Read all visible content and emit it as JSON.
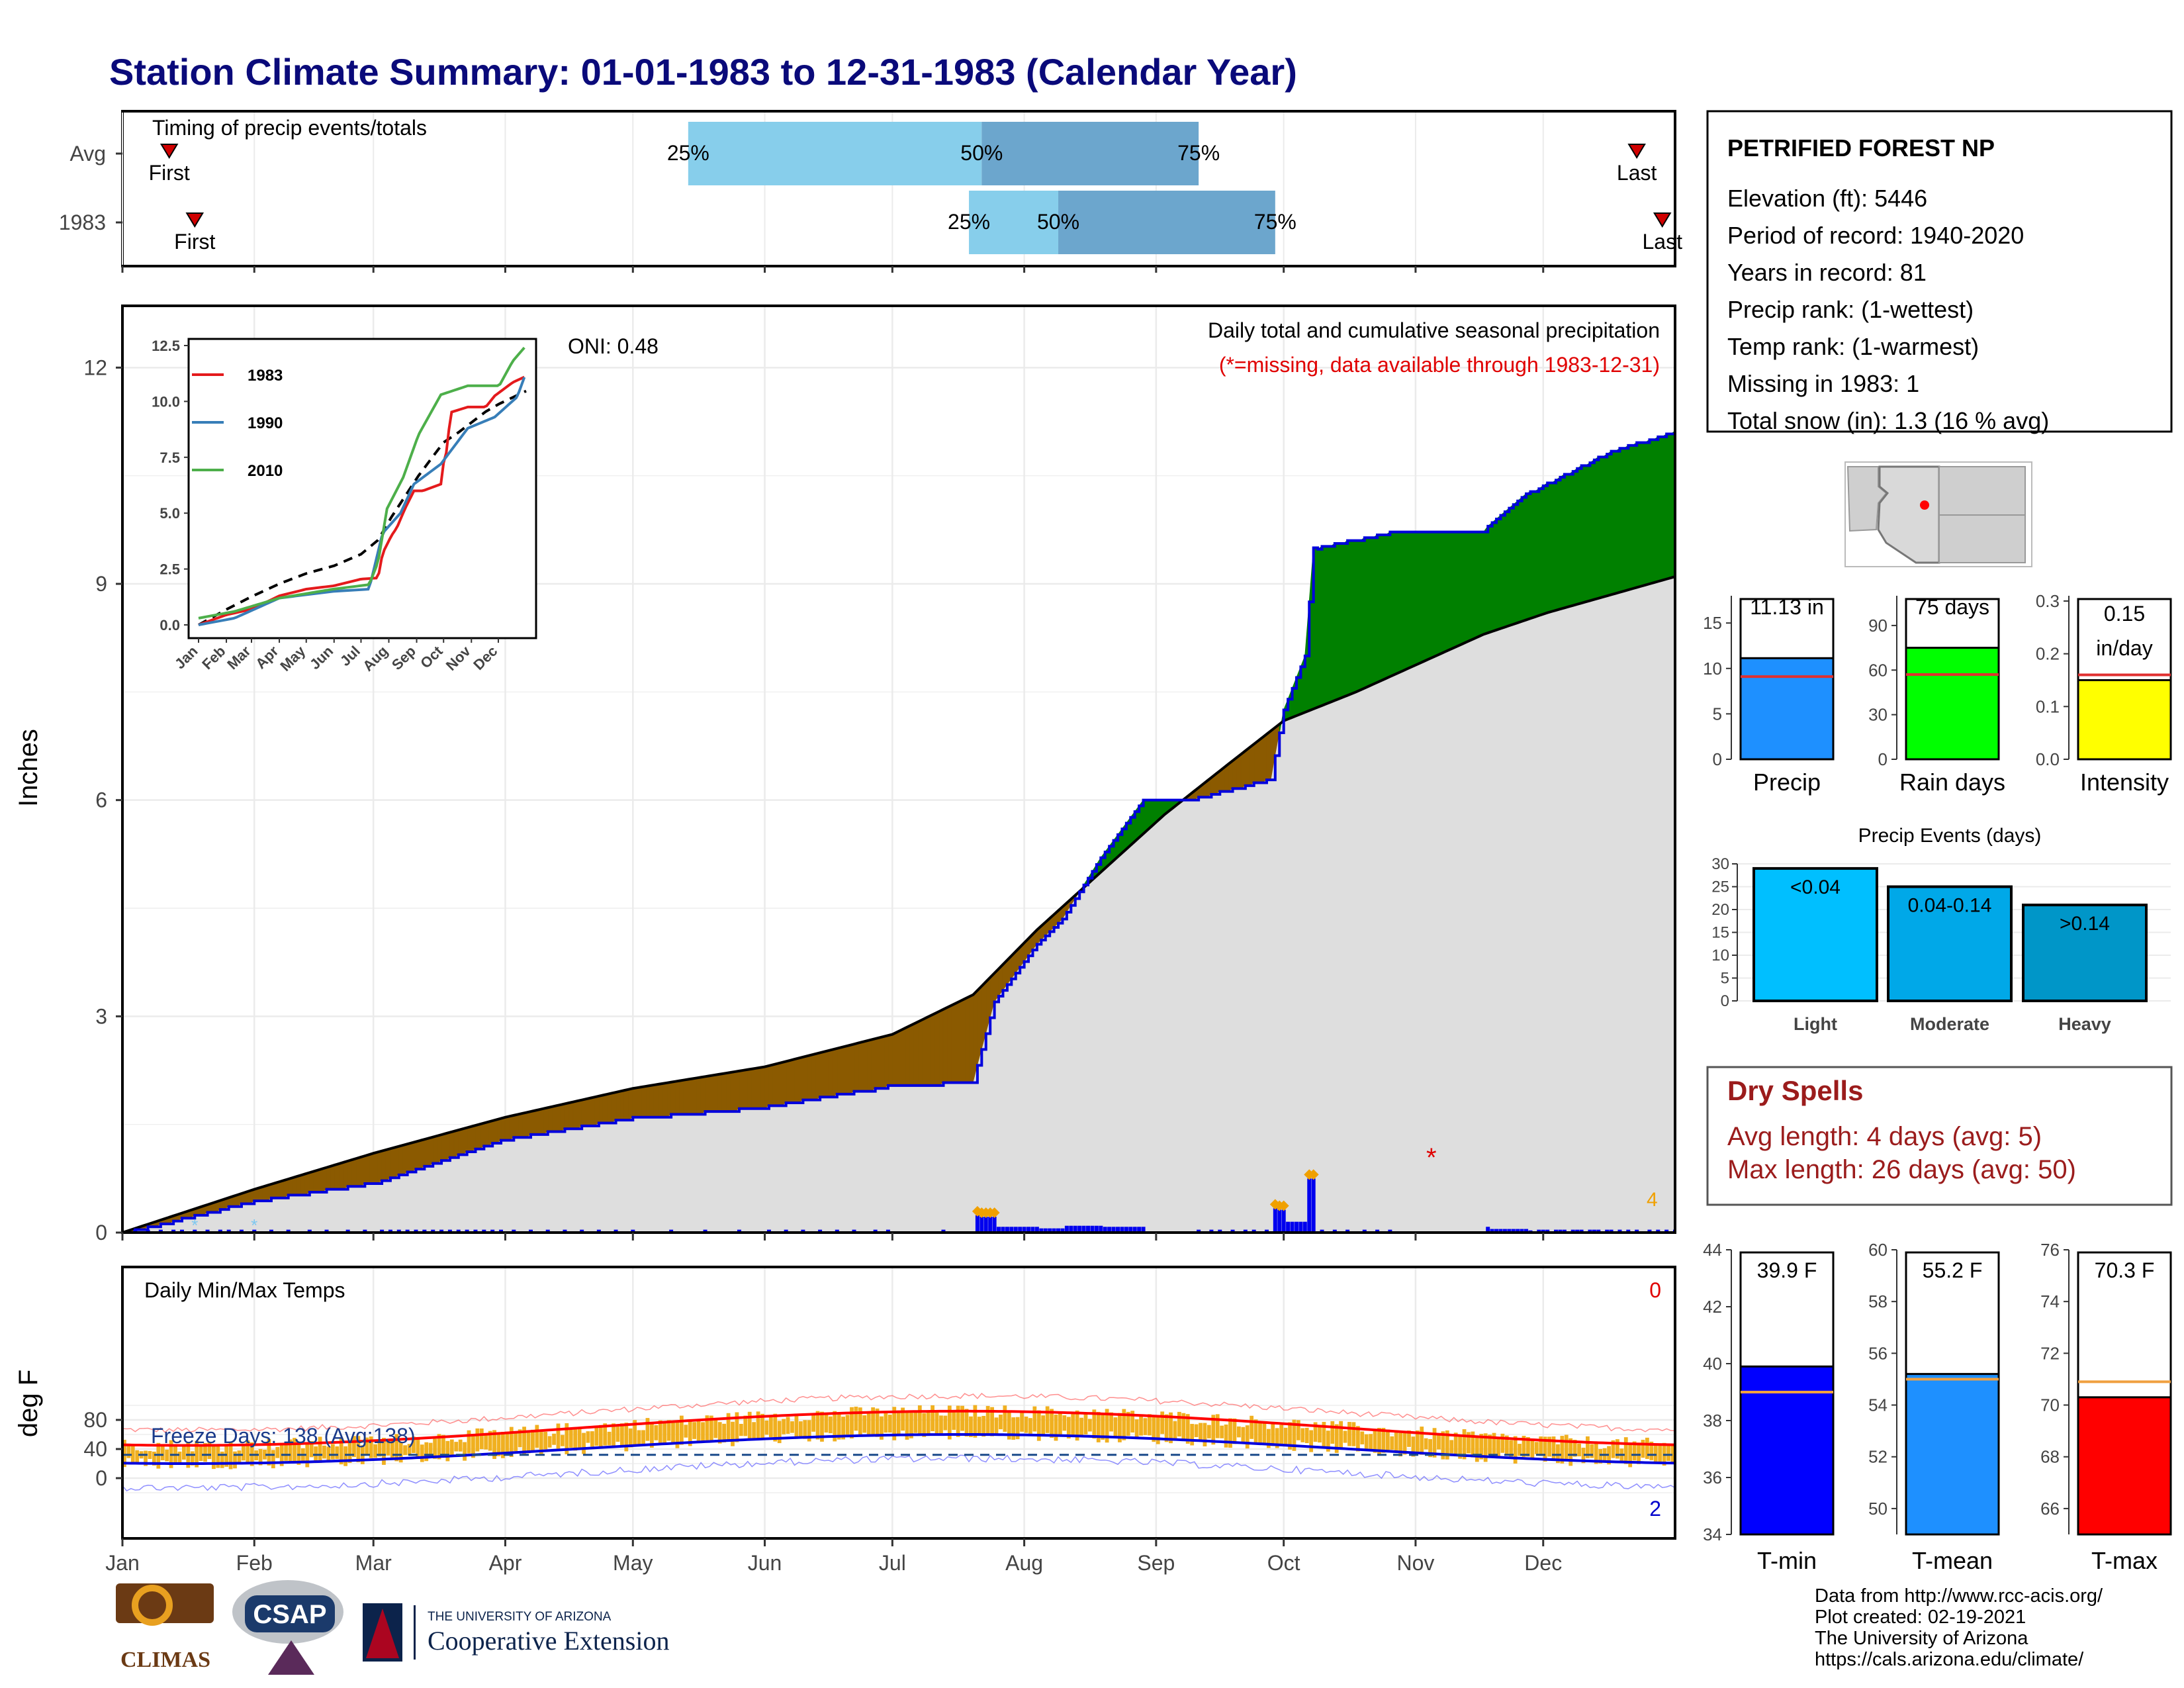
{
  "title": "Station Climate Summary: 01-01-1983 to 12-31-1983 (Calendar Year)",
  "timing_panel": {
    "label": "Timing of precip events/totals",
    "rows": [
      {
        "name": "Avg",
        "first_label": "First",
        "last_label": "Last",
        "first_day": 11,
        "last_day": 356,
        "p25": 133,
        "p50": 202,
        "p75": 253
      },
      {
        "name": "1983",
        "first_label": "First",
        "last_label": "Last",
        "first_day": 17,
        "last_day": 362,
        "p25": 199,
        "p50": 220,
        "p75": 271
      }
    ],
    "pct_labels": [
      "25%",
      "50%",
      "75%"
    ]
  },
  "precip_panel": {
    "ylabel": "Inches",
    "yticks": [
      "0",
      "3",
      "6",
      "9",
      "12"
    ],
    "caption": "Daily total and cumulative seasonal precipitation",
    "missing_note": "(*=missing, data available through 1983-12-31)",
    "oni": "ONI: 0.48",
    "corner_count": "4"
  },
  "inset": {
    "yticks": [
      "0.0",
      "2.5",
      "5.0",
      "7.5",
      "10.0",
      "12.5"
    ],
    "xticks": [
      "Jan",
      "Feb",
      "Mar",
      "Apr",
      "May",
      "Jun",
      "Jul",
      "Aug",
      "Sep",
      "Oct",
      "Nov",
      "Dec"
    ],
    "legend": [
      {
        "name": "1983",
        "color": "#e41a1c"
      },
      {
        "name": "1990",
        "color": "#377eb8"
      },
      {
        "name": "2010",
        "color": "#4daf4a"
      }
    ]
  },
  "temp_panel": {
    "label": "Daily Min/Max Temps",
    "ylabel": "deg F",
    "yticks": [
      "0",
      "40",
      "80"
    ],
    "freeze": "Freeze Days: 138 (Avg:138)",
    "top_count": "0",
    "bottom_count": "2"
  },
  "months": [
    "Jan",
    "Feb",
    "Mar",
    "Apr",
    "May",
    "Jun",
    "Jul",
    "Aug",
    "Sep",
    "Oct",
    "Nov",
    "Dec"
  ],
  "station": {
    "name": "PETRIFIED FOREST NP",
    "lines": [
      "Elevation (ft): 5446",
      "Period of record: 1940-2020",
      "Years in record: 81",
      "Precip rank:  (1-wettest)",
      "Temp rank:  (1-warmest)",
      "Missing in 1983: 1",
      "Total snow (in): 1.3 (16 % avg)"
    ]
  },
  "summary_bars": [
    {
      "label": "Precip",
      "value_text": "11.13 in",
      "value": 11.13,
      "avg": 9.1,
      "max": 18,
      "ticks": [
        "0",
        "5",
        "10",
        "15"
      ],
      "color": "#1e90ff"
    },
    {
      "label": "Rain days",
      "value_text": "75 days",
      "value": 75,
      "avg": 57,
      "max": 110,
      "ticks": [
        "0",
        "30",
        "60",
        "90"
      ],
      "color": "#00ff00"
    },
    {
      "label": "Intensity",
      "value_text": "0.15 in/day",
      "value": 0.15,
      "avg": 0.16,
      "max": 0.31,
      "ticks": [
        "0.0",
        "0.1",
        "0.2",
        "0.3"
      ],
      "color": "#ffff00"
    }
  ],
  "events": {
    "title": "Precip Events (days)",
    "ticks": [
      "0",
      "5",
      "10",
      "15",
      "20",
      "25",
      "30"
    ],
    "bars": [
      {
        "label": "Light",
        "range": "<0.04",
        "value": 29,
        "color": "#00bfff"
      },
      {
        "label": "Moderate",
        "range": "0.04-0.14",
        "value": 25,
        "color": "#00a8e8"
      },
      {
        "label": "Heavy",
        "range": ">0.14",
        "value": 21,
        "color": "#0096c8"
      }
    ]
  },
  "dry_spells": {
    "title": "Dry Spells",
    "avg": "Avg length: 4 days (avg: 5)",
    "max": "Max length: 26 days (avg: 50)"
  },
  "temp_bars": [
    {
      "label": "T-min",
      "value_text": "39.9 F",
      "value": 39.9,
      "avg": 39.0,
      "min": 34,
      "max": 44,
      "ticks": [
        "34",
        "36",
        "38",
        "40",
        "42",
        "44"
      ],
      "color": "#0000ff"
    },
    {
      "label": "T-mean",
      "value_text": "55.2 F",
      "value": 55.2,
      "avg": 55.0,
      "min": 49,
      "max": 60,
      "ticks": [
        "50",
        "52",
        "54",
        "56",
        "58",
        "60"
      ],
      "color": "#1e90ff"
    },
    {
      "label": "T-max",
      "value_text": "70.3 F",
      "value": 70.3,
      "avg": 70.9,
      "min": 65,
      "max": 76,
      "ticks": [
        "66",
        "68",
        "70",
        "72",
        "74",
        "76"
      ],
      "color": "#ff0000"
    }
  ],
  "footer": [
    "Data from http://www.rcc-acis.org/",
    "Plot created: 02-19-2021",
    "The University of Arizona",
    "https://cals.arizona.edu/climate/"
  ],
  "logos": {
    "climas": "CLIMAS",
    "csap": "CSAP",
    "ua_small": "THE UNIVERSITY OF ARIZONA",
    "ua_big": "Cooperative Extension"
  },
  "chart_data": {
    "type": "area",
    "title": "Station Climate Summary: 01-01-1983 to 12-31-1983 (Calendar Year)",
    "ylabel": "Inches",
    "ylim": [
      0,
      12
    ],
    "x": [
      "Jan",
      "Feb",
      "Mar",
      "Apr",
      "May",
      "Jun",
      "Jul",
      "Aug",
      "Sep",
      "Oct",
      "Nov",
      "Dec"
    ],
    "cumulative_1983": [
      [
        0,
        0
      ],
      [
        31,
        0.45
      ],
      [
        59,
        0.7
      ],
      [
        90,
        1.3
      ],
      [
        120,
        1.6
      ],
      [
        151,
        1.75
      ],
      [
        181,
        2.05
      ],
      [
        200,
        2.1
      ],
      [
        205,
        3.2
      ],
      [
        215,
        4.0
      ],
      [
        221,
        4.35
      ],
      [
        230,
        5.2
      ],
      [
        240,
        6.0
      ],
      [
        250,
        6.0
      ],
      [
        270,
        6.3
      ],
      [
        273,
        7.25
      ],
      [
        278,
        8.0
      ],
      [
        280,
        9.5
      ],
      [
        300,
        9.75
      ],
      [
        320,
        9.75
      ],
      [
        330,
        10.25
      ],
      [
        350,
        10.85
      ],
      [
        365,
        11.13
      ]
    ],
    "cumulative_avg": [
      [
        0,
        0
      ],
      [
        31,
        0.6
      ],
      [
        59,
        1.1
      ],
      [
        90,
        1.6
      ],
      [
        120,
        2.0
      ],
      [
        151,
        2.3
      ],
      [
        181,
        2.75
      ],
      [
        200,
        3.3
      ],
      [
        215,
        4.2
      ],
      [
        230,
        5.0
      ],
      [
        245,
        5.8
      ],
      [
        260,
        6.5
      ],
      [
        273,
        7.1
      ],
      [
        290,
        7.5
      ],
      [
        305,
        7.9
      ],
      [
        320,
        8.3
      ],
      [
        335,
        8.6
      ],
      [
        350,
        8.85
      ],
      [
        365,
        9.1
      ]
    ],
    "temp_normals": {
      "ylabel": "deg F",
      "ylim": [
        -30,
        110
      ],
      "avg_max_jan": 45,
      "avg_max_jul": 92,
      "avg_min_jan": 20,
      "avg_min_jul": 60
    }
  }
}
